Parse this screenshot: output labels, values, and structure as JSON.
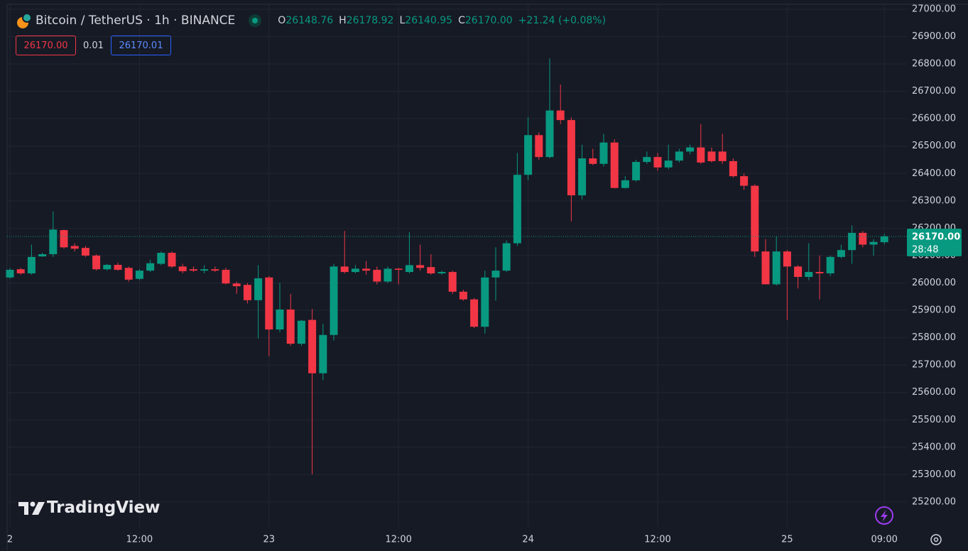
{
  "header": {
    "symbol": "Bitcoin / TetherUS · 1h · BINANCE",
    "o_label": "O",
    "o": "26148.76",
    "h_label": "H",
    "h": "26178.92",
    "l_label": "L",
    "l": "26140.95",
    "c_label": "C",
    "c": "26170.00",
    "change": "+21.24 (+0.08%)",
    "sell": "26170.00",
    "spread": "0.01",
    "buy": "26170.01"
  },
  "watermark": "TradingView",
  "chart_data": {
    "type": "candlestick",
    "categories": [
      "2",
      null,
      null,
      null,
      null,
      null,
      null,
      null,
      null,
      null,
      null,
      null,
      "12:00",
      null,
      null,
      null,
      null,
      null,
      null,
      null,
      null,
      null,
      null,
      null,
      "23",
      null,
      null,
      null,
      null,
      null,
      null,
      null,
      null,
      null,
      null,
      null,
      "12:00",
      null,
      null,
      null,
      null,
      null,
      null,
      null,
      null,
      null,
      null,
      null,
      "24",
      null,
      null,
      null,
      null,
      null,
      null,
      null,
      null,
      null,
      null,
      null,
      "12:00",
      null,
      null,
      null,
      null,
      null,
      null,
      null,
      null,
      null,
      null,
      null,
      "25",
      null,
      null,
      null,
      null,
      null,
      null,
      null,
      null,
      "09:00"
    ],
    "open": [
      26020,
      26050,
      26035,
      26097,
      26105,
      26193,
      26135,
      26128,
      26100,
      26050,
      26066,
      26055,
      26015,
      26045,
      26070,
      26110,
      26060,
      26050,
      26045,
      26050,
      26048,
      25998,
      25993,
      25937,
      26020,
      25830,
      25903,
      25778,
      25865,
      25670,
      25810,
      26060,
      26040,
      26052,
      26048,
      26005,
      26052,
      26040,
      26065,
      26058,
      26035,
      26040,
      25968,
      25940,
      25840,
      26020,
      26045,
      26145,
      26395,
      26540,
      26460,
      26630,
      26595,
      26320,
      26455,
      26435,
      26513,
      26347,
      26375,
      26442,
      26460,
      26422,
      26447,
      26480,
      26495,
      26480,
      26480,
      26445,
      26390,
      26355,
      26115,
      25995,
      26115,
      26060,
      26022,
      26040,
      26035,
      26095,
      26120,
      26183,
      26140,
      26148.76
    ],
    "high": [
      26055,
      26055,
      26140,
      26110,
      26261,
      26195,
      26145,
      26135,
      26105,
      26070,
      26075,
      26060,
      26050,
      26085,
      26115,
      26115,
      26070,
      26060,
      26065,
      26060,
      26055,
      26005,
      26000,
      26065,
      26025,
      26000,
      25960,
      25865,
      25905,
      25850,
      26070,
      26190,
      26065,
      26080,
      26060,
      26060,
      26055,
      26185,
      26140,
      26105,
      26045,
      26045,
      25975,
      25945,
      26045,
      26130,
      26155,
      26475,
      26605,
      26550,
      26820,
      26725,
      26605,
      26505,
      26490,
      26545,
      26525,
      26390,
      26450,
      26480,
      26475,
      26505,
      26490,
      26505,
      26580,
      26495,
      26545,
      26455,
      26400,
      26360,
      26160,
      26170,
      26120,
      26065,
      26145,
      26100,
      26100,
      26140,
      26210,
      26190,
      26160,
      26178.92
    ],
    "low": [
      26015,
      26030,
      26030,
      26095,
      26095,
      26125,
      26115,
      26095,
      26045,
      26045,
      26045,
      26005,
      26010,
      26040,
      26065,
      26055,
      26035,
      26040,
      26035,
      26040,
      25995,
      25960,
      25925,
      25797,
      25732,
      25820,
      25770,
      25770,
      25301,
      25645,
      25790,
      26035,
      26035,
      26030,
      25995,
      26000,
      25995,
      26035,
      26045,
      26030,
      26030,
      25960,
      25935,
      25835,
      25815,
      25935,
      26040,
      26135,
      26375,
      26450,
      26455,
      26580,
      26225,
      26305,
      26430,
      26425,
      26345,
      26345,
      26370,
      26435,
      26410,
      26415,
      26440,
      26470,
      26435,
      26440,
      26435,
      26385,
      26340,
      26095,
      25995,
      25990,
      25864,
      25980,
      26010,
      25940,
      26025,
      26090,
      26070,
      26130,
      26100,
      26140.95
    ],
    "close": [
      26048,
      26035,
      26095,
      26105,
      26195,
      26130,
      26125,
      26100,
      26050,
      26066,
      26048,
      26012,
      26045,
      26072,
      26110,
      26060,
      26043,
      26045,
      26050,
      26045,
      25998,
      25988,
      25937,
      26017,
      25830,
      25903,
      25778,
      25862,
      25670,
      25810,
      26060,
      26040,
      26052,
      26045,
      26005,
      26052,
      26048,
      26065,
      26055,
      26035,
      26040,
      25968,
      25940,
      25840,
      26020,
      26045,
      26145,
      26395,
      26540,
      26460,
      26630,
      26595,
      26320,
      26455,
      26435,
      26513,
      26347,
      26375,
      26442,
      26460,
      26422,
      26447,
      26480,
      26495,
      26440,
      26445,
      26445,
      26390,
      26355,
      26115,
      25995,
      26115,
      26060,
      26022,
      26040,
      26035,
      26095,
      26120,
      26183,
      26140,
      26150,
      26170
    ],
    "up_color": "#089981",
    "down_color": "#f23645",
    "ylim": [
      25109,
      27018
    ],
    "yticks": [
      {
        "value": 25200,
        "label": "25200.00"
      },
      {
        "value": 25300,
        "label": "25300.00"
      },
      {
        "value": 25400,
        "label": "25400.00"
      },
      {
        "value": 25500,
        "label": "25500.00"
      },
      {
        "value": 25600,
        "label": "25600.00"
      },
      {
        "value": 25700,
        "label": "25700.00"
      },
      {
        "value": 25800,
        "label": "25800.00"
      },
      {
        "value": 25900,
        "label": "25900.00"
      },
      {
        "value": 26000,
        "label": "26000.00"
      },
      {
        "value": 26100,
        "label": "26100.00"
      },
      {
        "value": 26200,
        "label": "26200.00"
      },
      {
        "value": 26300,
        "label": "26300.00"
      },
      {
        "value": 26400,
        "label": "26400.00"
      },
      {
        "value": 26500,
        "label": "26500.00"
      },
      {
        "value": 26600,
        "label": "26600.00"
      },
      {
        "value": 26700,
        "label": "26700.00"
      },
      {
        "value": 26800,
        "label": "26800.00"
      },
      {
        "value": 26900,
        "label": "26900.00"
      },
      {
        "value": 27000,
        "label": "27000.00"
      }
    ],
    "grid": true,
    "last_price": {
      "value": 26170,
      "label": "26170.00",
      "countdown": "28:48",
      "color": "#089981"
    }
  }
}
